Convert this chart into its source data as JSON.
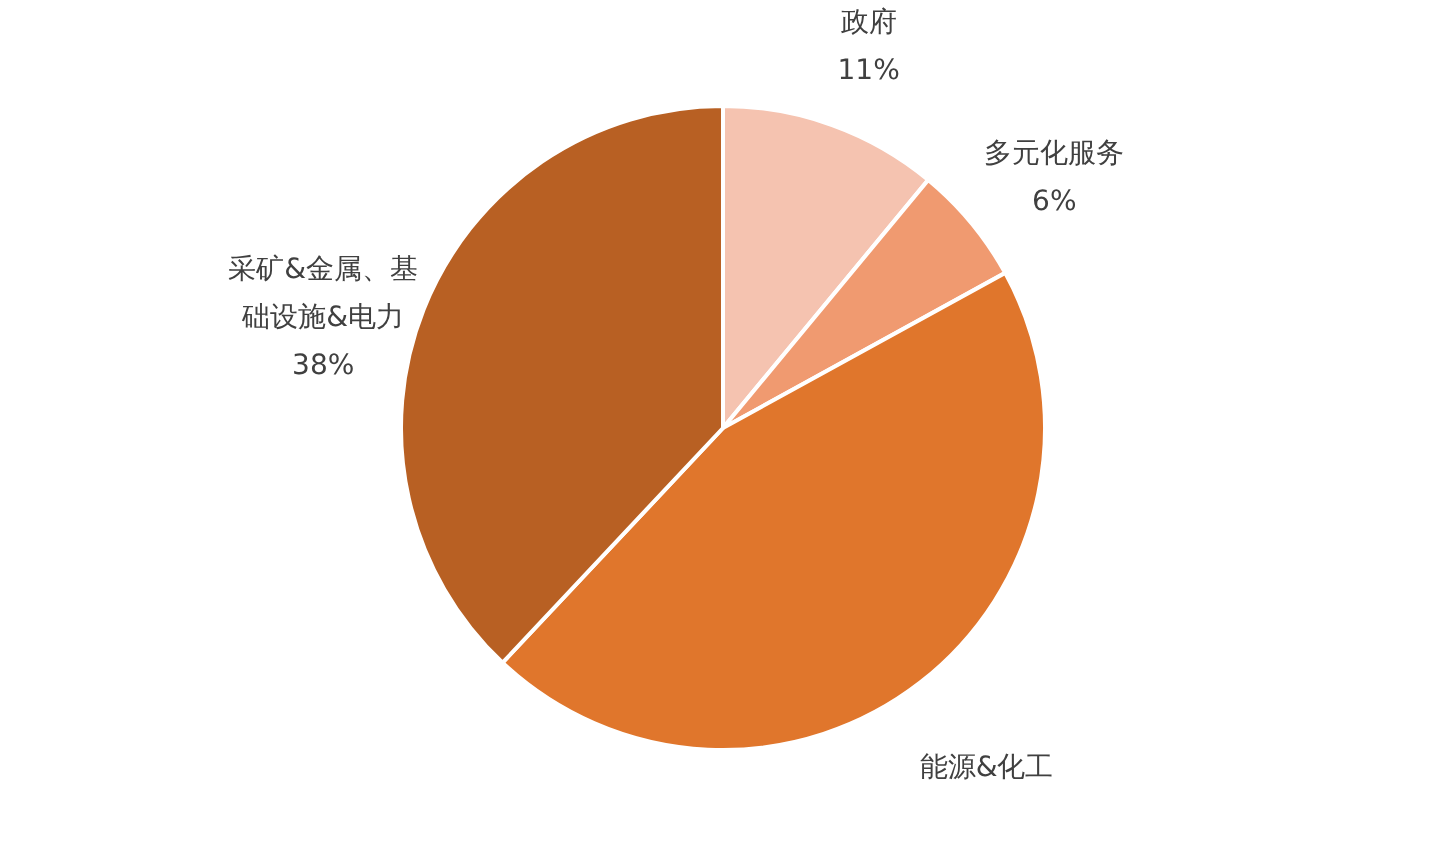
{
  "chart_data": {
    "type": "pie",
    "categories": [
      "政府",
      "多元化服务",
      "能源&化工",
      "采矿&金属、基础设施&电力"
    ],
    "values": [
      11,
      6,
      45,
      38
    ],
    "value_labels": [
      "11%",
      "6%",
      null,
      "38%"
    ],
    "colors": [
      "#f5c3b0",
      "#f09a70",
      "#e0762c",
      "#b86023"
    ],
    "legend": false
  }
}
